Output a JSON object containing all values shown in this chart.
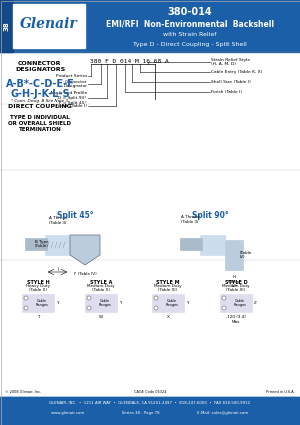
{
  "title_number": "380-014",
  "title_line1": "EMI/RFI  Non-Environmental  Backshell",
  "title_line2": "with Strain Relief",
  "title_line3": "Type D - Direct Coupling - Split Shell",
  "header_blue": "#1a5fa8",
  "header_text_color": "#ffffff",
  "tab_text": "38",
  "logo_text": "Glenair",
  "section1_header": "CONNECTOR\nDESIGNATORS",
  "designators": "A-B*-C-D-E-F\nG-H-J-K-L-S",
  "note": "* Conn. Desig. B See Note 3",
  "coupling": "DIRECT COUPLING",
  "type_text": "TYPE D INDIVIDUAL\nOR OVERALL SHIELD\nTERMINATION",
  "part_number_label": "380 F D 014 M 16 68 A",
  "pn_labels": [
    "Product Series",
    "Connector\nDesignator",
    "Angle and Profile\nD = Split 90°\nF = Split 45°",
    "Shell Size\n(Table I)",
    "Cable Entry (Table K, X)",
    "Strain Relief Style\n(H, A, M, D)",
    "Finish (Table I)",
    "Basic Part No."
  ],
  "split45_label": "Split 45°",
  "split90_label": "Split 90°",
  "style_h": "STYLE H\nHeavy Duty\n(Table X)",
  "style_a": "STYLE A\nMedium Duty\n(Table X)",
  "style_m": "STYLE M\nMedium Duty\n(Table XI)",
  "style_d": "STYLE D\nMedium Duty\n(Table XI)",
  "footer_line1": "GLENAIR, INC.  •  1211 AIR WAY  •  GLENDALE, CA 91201-2497  •  818-247-6000  •  FAX 818-500-9912",
  "footer_line2": "www.glenair.com                              Series 38 - Page 78                              E-Mail: sales@glenair.com",
  "copyright": "© 2008 Glenair, Inc.",
  "cage_code": "CAGE Code 06324",
  "printed": "Printed in U.S.A.",
  "bg_white": "#ffffff",
  "bg_light": "#f0f0f0",
  "blue_dark": "#1a5276",
  "text_black": "#000000",
  "dim_color": "#555555"
}
